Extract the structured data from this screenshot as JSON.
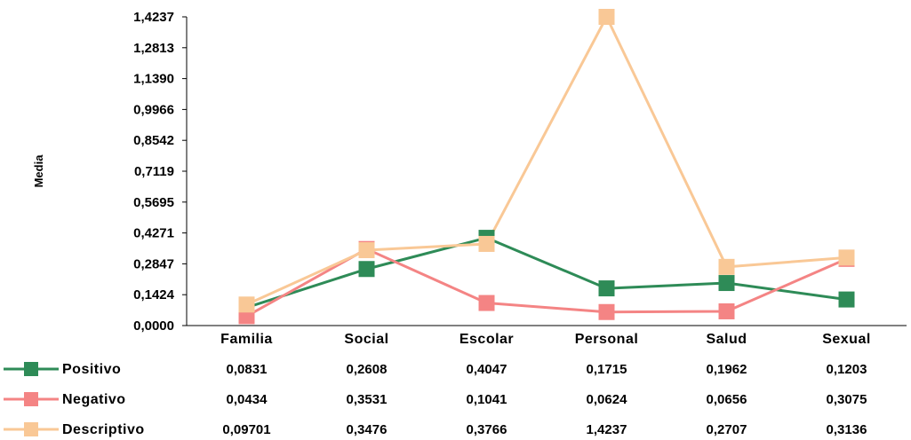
{
  "chart_data": {
    "type": "line",
    "ylabel": "Media",
    "ylim": [
      0,
      1.4237
    ],
    "yticks": [
      "0,0000",
      "0,1424",
      "0,2847",
      "0,4271",
      "0,5695",
      "0,7119",
      "0,8542",
      "0,9966",
      "1,1390",
      "1,2813",
      "1,4237"
    ],
    "categories": [
      "Familia",
      "Social",
      "Escolar",
      "Personal",
      "Salud",
      "Sexual"
    ],
    "grid": false,
    "legend": "bottom data table",
    "series": [
      {
        "name": "Positivo",
        "color": "#2e8b57",
        "values": [
          0.0831,
          0.2608,
          0.4047,
          0.1715,
          0.1962,
          0.1203
        ],
        "labels": [
          "0,0831",
          "0,2608",
          "0,4047",
          "0,1715",
          "0,1962",
          "0,1203"
        ]
      },
      {
        "name": "Negativo",
        "color": "#f48484",
        "values": [
          0.0434,
          0.3531,
          0.1041,
          0.0624,
          0.0656,
          0.3075
        ],
        "labels": [
          "0,0434",
          "0,3531",
          "0,1041",
          "0,0624",
          "0,0656",
          "0,3075"
        ]
      },
      {
        "name": "Descriptivo",
        "color": "#f9c896",
        "values": [
          0.09701,
          0.3476,
          0.3766,
          1.4237,
          0.2707,
          0.3136
        ],
        "labels": [
          "0,09701",
          "0,3476",
          "0,3766",
          "1,4237",
          "0,2707",
          "0,3136"
        ]
      }
    ]
  }
}
